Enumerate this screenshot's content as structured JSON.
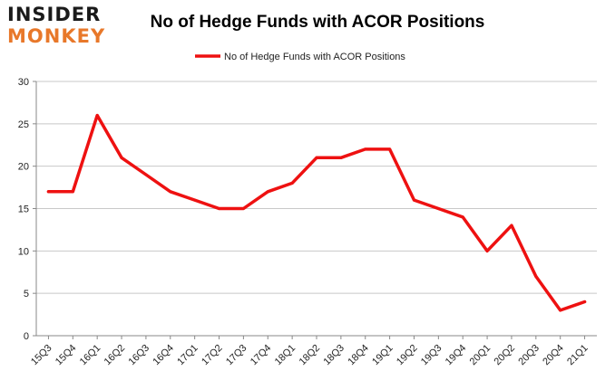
{
  "logo": {
    "line1": "INSIDER",
    "line2": "MONKEY"
  },
  "chart_data": {
    "type": "line",
    "title": "No of Hedge Funds with ACOR Positions",
    "xlabel": "",
    "ylabel": "",
    "ylim": [
      0,
      30
    ],
    "yticks": [
      0,
      5,
      10,
      15,
      20,
      25,
      30
    ],
    "grid": true,
    "legend_position": "top-center",
    "line_color": "#ee1111",
    "categories": [
      "15Q3",
      "15Q4",
      "16Q1",
      "16Q2",
      "16Q3",
      "16Q4",
      "17Q1",
      "17Q2",
      "17Q3",
      "17Q4",
      "18Q1",
      "18Q2",
      "18Q3",
      "18Q4",
      "19Q1",
      "19Q2",
      "19Q3",
      "19Q4",
      "20Q1",
      "20Q2",
      "20Q3",
      "20Q4",
      "21Q1"
    ],
    "series": [
      {
        "name": "No of Hedge Funds with ACOR Positions",
        "values": [
          17,
          17,
          26,
          21,
          19,
          17,
          16,
          15,
          15,
          17,
          18,
          21,
          21,
          22,
          22,
          16,
          15,
          14,
          10,
          13,
          7,
          3,
          4
        ]
      }
    ]
  }
}
